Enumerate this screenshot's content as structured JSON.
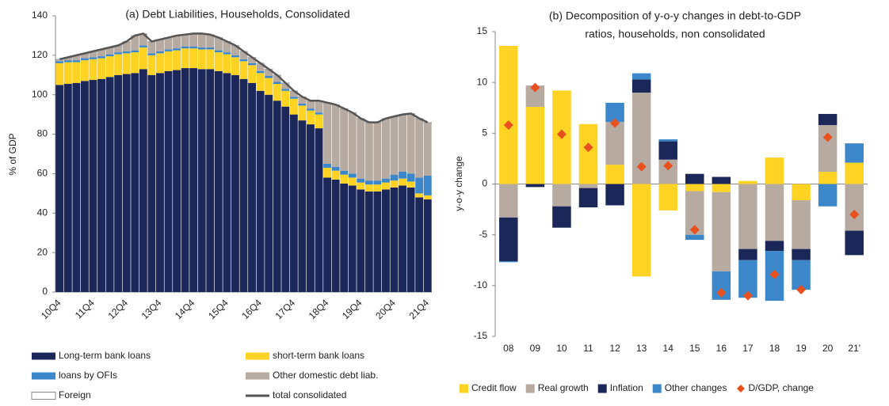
{
  "chart_data": [
    {
      "type": "stacked_bar",
      "title": [
        "(a) Debt Liabilities, Households, Consolidated"
      ],
      "y_label": "% of GDP",
      "categories": [
        "10Q4",
        null,
        null,
        null,
        "11Q4",
        null,
        null,
        null,
        "12Q4",
        null,
        null,
        null,
        "13Q4",
        null,
        null,
        null,
        "14Q4",
        null,
        null,
        null,
        "15Q4",
        null,
        null,
        null,
        "16Q4",
        null,
        null,
        null,
        "17Q4",
        null,
        null,
        null,
        "18Q4",
        null,
        null,
        null,
        "19Q4",
        null,
        null,
        null,
        "20Q4",
        null,
        null,
        null,
        "21Q4"
      ],
      "ylim": [
        0,
        140
      ],
      "yticks": [
        0,
        20,
        40,
        60,
        80,
        100,
        120,
        140
      ],
      "grid": false,
      "legend_position": "bottom",
      "series": [
        {
          "name": "Long-term bank loans",
          "color": "#1c2759",
          "values": [
            105,
            105.5,
            106,
            107,
            107.5,
            108,
            109,
            110,
            110.5,
            111,
            113,
            110,
            111,
            112,
            112.5,
            113.5,
            113.5,
            113,
            113,
            112,
            111,
            110,
            108,
            106,
            102,
            100,
            97,
            94,
            90,
            87,
            85,
            83,
            58,
            57,
            55,
            54,
            52,
            51,
            51,
            52,
            53,
            54,
            53,
            48,
            47
          ]
        },
        {
          "name": "short-term bank loans",
          "color": "#ffd324",
          "values": [
            11,
            11,
            10.5,
            10.5,
            10.5,
            10.5,
            10.5,
            10.5,
            10.5,
            10.5,
            11,
            10,
            10,
            10,
            10,
            10,
            10,
            10,
            10,
            9.5,
            9.5,
            9,
            9,
            9,
            9,
            8.5,
            8.5,
            8,
            8,
            7.5,
            7,
            7,
            5,
            4.5,
            4.5,
            4,
            3.5,
            3.5,
            3.5,
            3.5,
            3.5,
            3.5,
            3,
            2,
            2
          ]
        },
        {
          "name": "loans by OFIs",
          "color": "#3b87c9",
          "values": [
            1,
            1,
            1,
            1,
            1,
            1,
            1,
            1,
            1,
            1,
            1,
            1,
            1,
            1,
            1,
            1,
            1,
            1,
            1,
            1,
            1,
            1,
            1,
            1,
            1,
            1,
            1,
            1,
            1,
            1,
            1,
            1,
            2,
            2,
            2,
            2,
            2,
            2,
            2,
            2,
            3,
            3.5,
            4,
            8,
            10
          ]
        },
        {
          "name": "Other domestic debt liab.",
          "color": "#b6aaa1",
          "values": [
            0.7,
            1.2,
            2.2,
            2.2,
            2.7,
            3.2,
            3.2,
            3.2,
            4.7,
            7.2,
            5.7,
            5.7,
            5.7,
            5.7,
            6.2,
            5.7,
            6.2,
            6.7,
            6.2,
            6.2,
            5.2,
            4.7,
            3.7,
            2.7,
            3.7,
            3.2,
            3.2,
            2.7,
            2.7,
            3.2,
            3.7,
            5.7,
            30.7,
            31.2,
            31.2,
            30.7,
            30.2,
            29.2,
            29.2,
            30.2,
            29.2,
            28.7,
            30.2,
            29.7,
            26.7
          ]
        },
        {
          "name": "Foreign",
          "color": "#ffffff",
          "values": [
            0.3,
            0.3,
            0.3,
            0.3,
            0.3,
            0.3,
            0.3,
            0.3,
            0.3,
            0.3,
            0.3,
            0.3,
            0.3,
            0.3,
            0.3,
            0.3,
            0.3,
            0.3,
            0.3,
            0.3,
            0.3,
            0.3,
            0.3,
            0.3,
            0.3,
            0.3,
            0.3,
            0.3,
            0.3,
            0.3,
            0.3,
            0.3,
            0.3,
            0.3,
            0.3,
            0.3,
            0.3,
            0.3,
            0.3,
            0.3,
            0.3,
            0.3,
            0.3,
            0.3,
            0.3
          ]
        },
        {
          "name": "total consolidated",
          "type": "line",
          "color": "#555555",
          "values": [
            118,
            119,
            120,
            121,
            122,
            123,
            124,
            125,
            127,
            130,
            131,
            127,
            128,
            129,
            130,
            130.5,
            131,
            131,
            130.5,
            129,
            127,
            125,
            122,
            119,
            116,
            113,
            110,
            106,
            102,
            99,
            97,
            97,
            96,
            95,
            93,
            91,
            88,
            86,
            86,
            88,
            89,
            90,
            90.5,
            88,
            86
          ]
        }
      ]
    },
    {
      "type": "stacked_bar",
      "title": [
        "(b) Decomposition of y-o-y changes in debt-to-GDP",
        "ratios, households, non consolidated"
      ],
      "y_label": "y-o-y change",
      "categories": [
        "08",
        "09",
        "10",
        "11",
        "12",
        "13",
        "14",
        "15",
        "16",
        "17",
        "18",
        "19",
        "20",
        "21'"
      ],
      "ylim": [
        -15,
        15
      ],
      "yticks": [
        -15,
        -10,
        -5,
        0,
        5,
        10,
        15
      ],
      "grid": false,
      "legend_position": "bottom",
      "series": [
        {
          "name": "Credit flow",
          "color": "#ffd324",
          "values": [
            13.6,
            7.6,
            9.2,
            5.9,
            1.9,
            -9.1,
            -2.6,
            -0.7,
            -0.8,
            0.3,
            2.6,
            -1.6,
            1.2,
            2.1
          ]
        },
        {
          "name": "Real growth",
          "color": "#b6aaa1",
          "values": [
            -3.3,
            2.1,
            -2.2,
            -0.4,
            4.2,
            9.0,
            2.4,
            -4.3,
            -7.8,
            -6.4,
            -5.6,
            -4.8,
            4.6,
            -4.6
          ]
        },
        {
          "name": "Inflation",
          "color": "#1c2759",
          "values": [
            -4.3,
            -0.3,
            -2.1,
            -1.9,
            -2.1,
            1.3,
            1.8,
            1.0,
            0.7,
            -1.1,
            -1.0,
            -1.1,
            1.1,
            -2.4
          ]
        },
        {
          "name": "Other changes",
          "color": "#3b87c9",
          "values": [
            -0.1,
            0,
            0,
            0,
            1.9,
            0.6,
            0.2,
            -0.5,
            -2.8,
            -3.7,
            -4.9,
            -2.9,
            -2.2,
            1.9
          ]
        },
        {
          "name": "D/GDP, change",
          "type": "marker",
          "color": "#e8501e",
          "values": [
            5.8,
            9.5,
            4.9,
            3.6,
            6.0,
            1.7,
            1.8,
            -4.5,
            -10.7,
            -11.0,
            -8.9,
            -10.4,
            4.6,
            -3.0
          ]
        }
      ]
    }
  ]
}
